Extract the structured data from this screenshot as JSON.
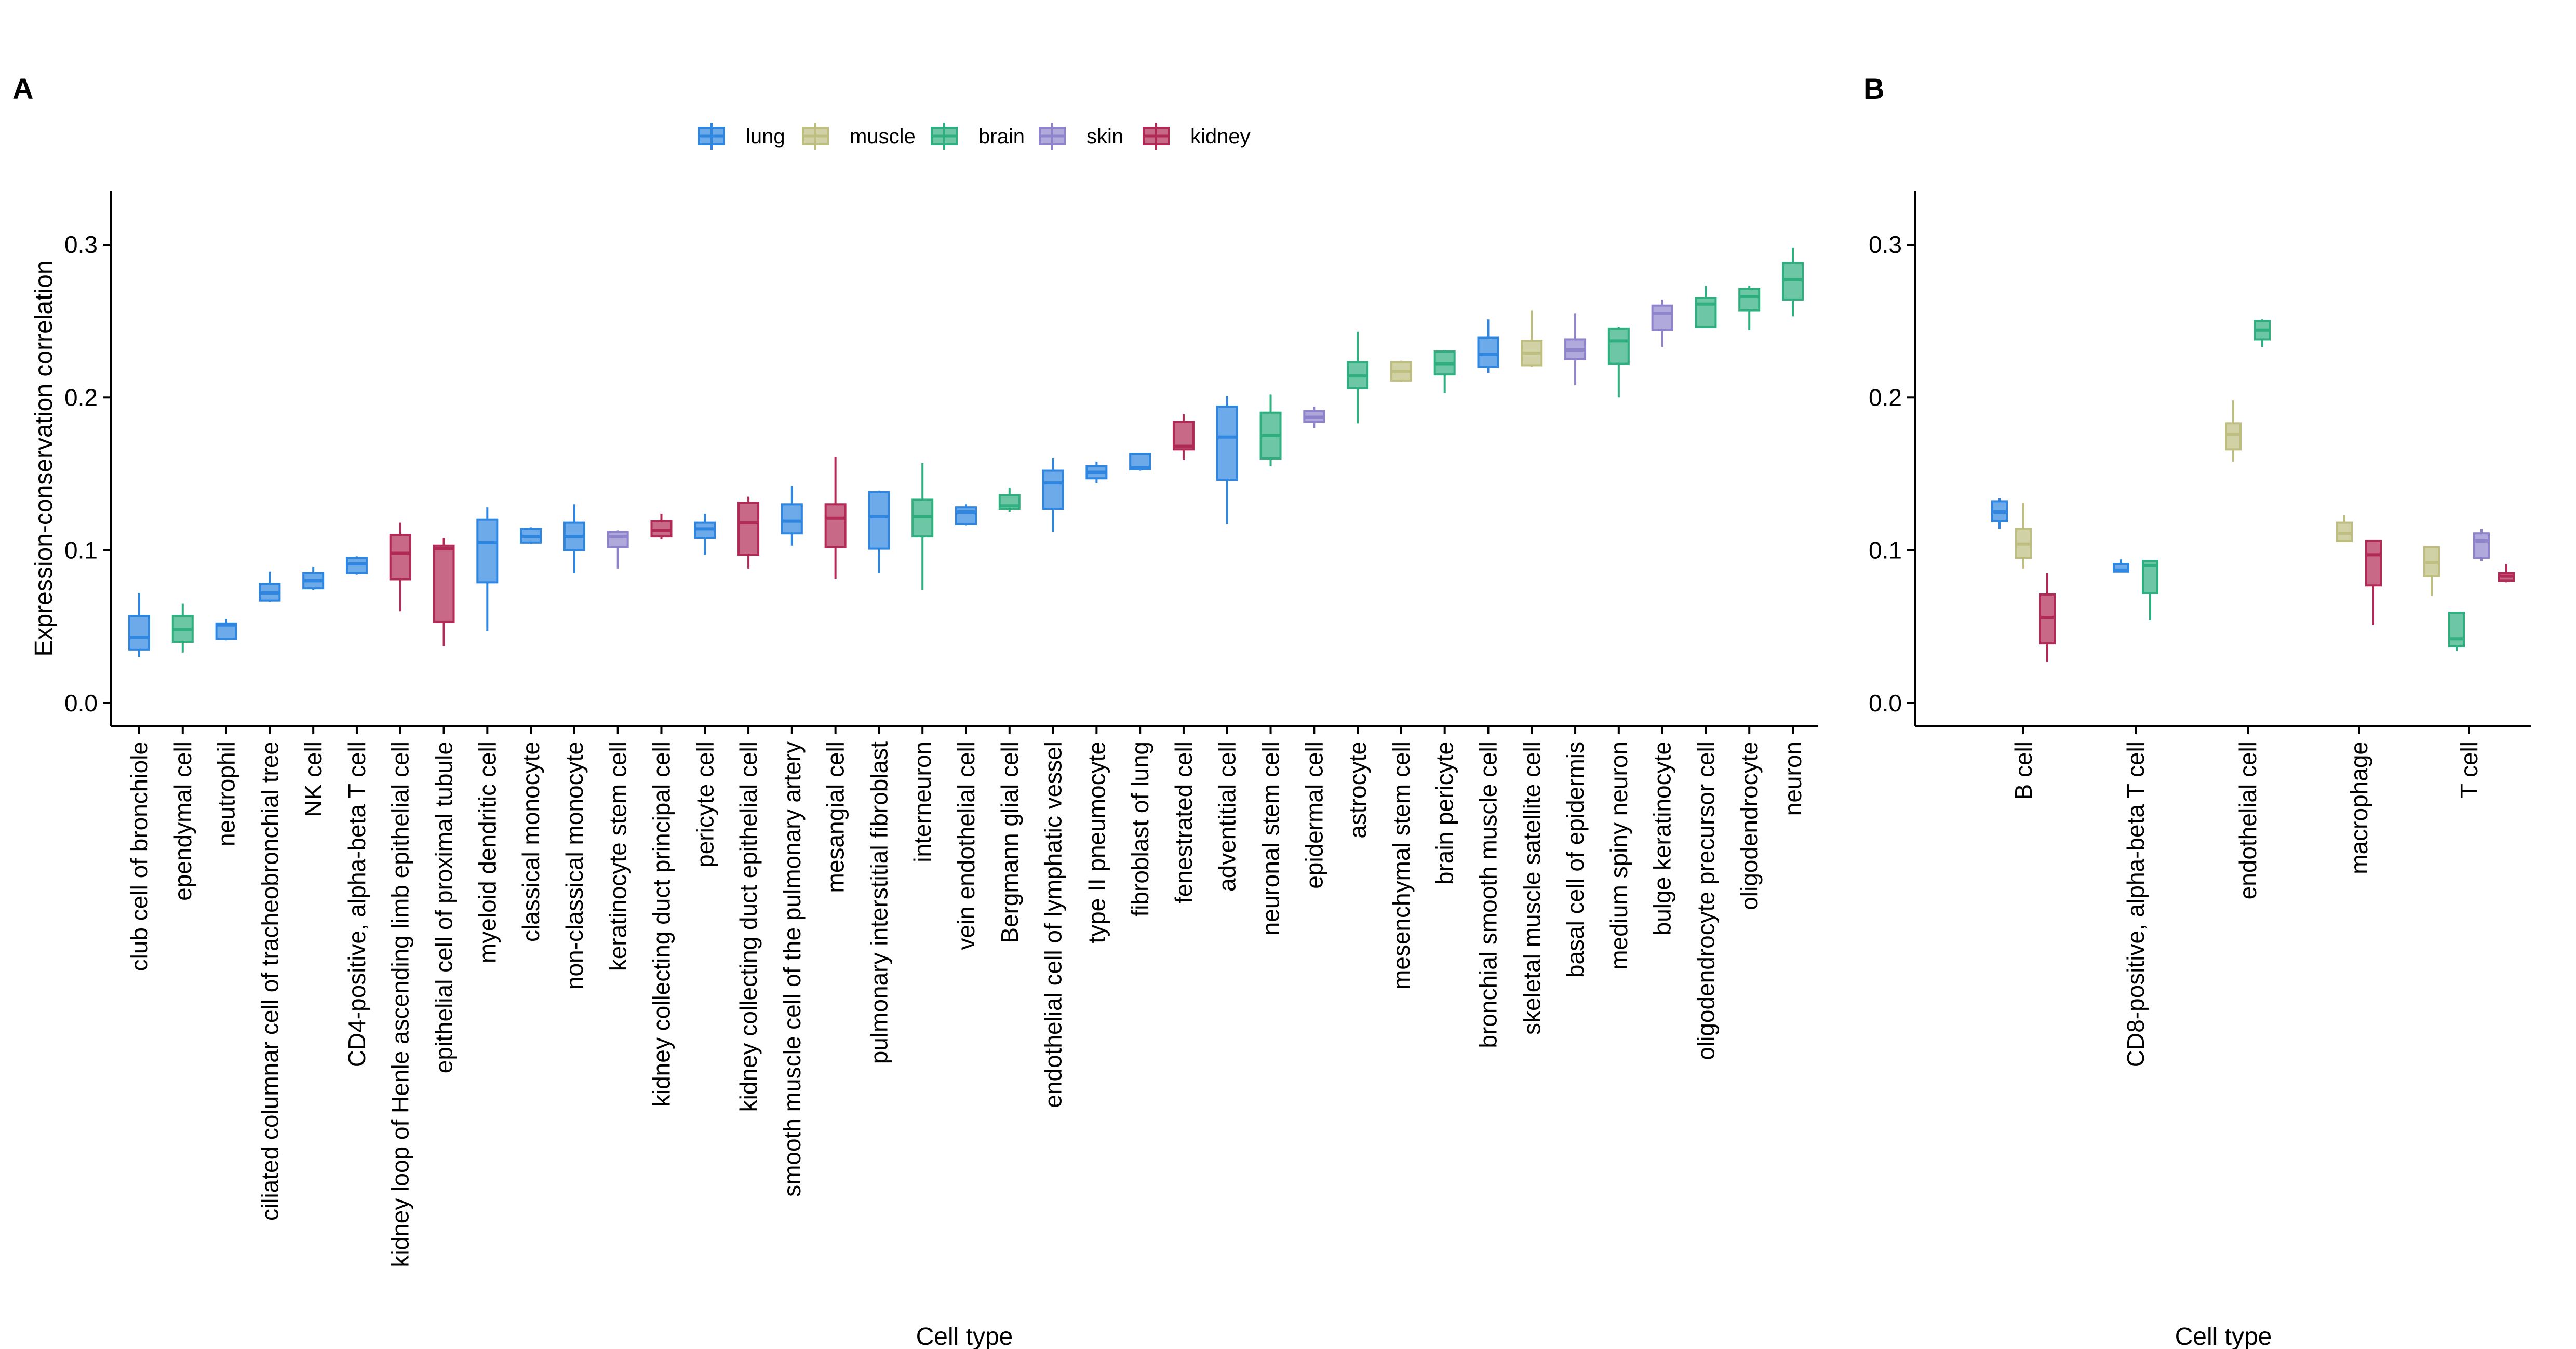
{
  "chart_data": [
    {
      "panel": "A",
      "type": "box",
      "xlabel": "Cell type",
      "ylabel": "Expression-conservation correlation",
      "ylim": [
        -0.015,
        0.335
      ],
      "yticks": [
        0.0,
        0.1,
        0.2,
        0.3
      ],
      "ytick_labels": [
        "0.0",
        "0.1",
        "0.2",
        "0.3"
      ],
      "legend": {
        "position": "top",
        "items": [
          {
            "name": "lung",
            "color": "#2E86E0"
          },
          {
            "name": "muscle",
            "color": "#BDBE80"
          },
          {
            "name": "brain",
            "color": "#2FAE7F"
          },
          {
            "name": "skin",
            "color": "#8F84CC"
          },
          {
            "name": "kidney",
            "color": "#B02A55"
          }
        ]
      },
      "categories": [
        "club cell of bronchiole",
        "ependymal cell",
        "neutrophil",
        "ciliated columnar cell of tracheobronchial tree",
        "NK cell",
        "CD4-positive, alpha-beta T cell",
        "kidney loop of Henle ascending limb epithelial cell",
        "epithelial cell of proximal tubule",
        "myeloid dendritic cell",
        "classical monocyte",
        "non-classical monocyte",
        "keratinocyte stem cell",
        "kidney collecting duct principal cell",
        "pericyte cell",
        "kidney collecting duct epithelial cell",
        "smooth muscle cell of the pulmonary artery",
        "mesangial cell",
        "pulmonary interstitial fibroblast",
        "interneuron",
        "vein endothelial cell",
        "Bergmann glial cell",
        "endothelial cell of lymphatic vessel",
        "type II pneumocyte",
        "fibroblast of lung",
        "fenestrated cell",
        "adventitial cell",
        "neuronal stem cell",
        "epidermal cell",
        "astrocyte",
        "mesenchymal stem cell",
        "brain pericyte",
        "bronchial smooth muscle cell",
        "skeletal muscle satellite cell",
        "basal cell of epidermis",
        "medium spiny neuron",
        "bulge keratinocyte",
        "oligodendrocyte precursor cell",
        "oligodendrocyte",
        "neuron"
      ],
      "boxes": [
        {
          "tissue": "lung",
          "lo": 0.03,
          "q1": 0.035,
          "med": 0.043,
          "q3": 0.057,
          "hi": 0.072
        },
        {
          "tissue": "brain",
          "lo": 0.033,
          "q1": 0.04,
          "med": 0.048,
          "q3": 0.057,
          "hi": 0.065
        },
        {
          "tissue": "lung",
          "lo": 0.041,
          "q1": 0.042,
          "med": 0.051,
          "q3": 0.052,
          "hi": 0.055
        },
        {
          "tissue": "lung",
          "lo": 0.066,
          "q1": 0.067,
          "med": 0.072,
          "q3": 0.078,
          "hi": 0.086
        },
        {
          "tissue": "lung",
          "lo": 0.074,
          "q1": 0.075,
          "med": 0.08,
          "q3": 0.085,
          "hi": 0.089
        },
        {
          "tissue": "lung",
          "lo": 0.084,
          "q1": 0.085,
          "med": 0.091,
          "q3": 0.095,
          "hi": 0.096
        },
        {
          "tissue": "kidney",
          "lo": 0.06,
          "q1": 0.081,
          "med": 0.098,
          "q3": 0.11,
          "hi": 0.118
        },
        {
          "tissue": "kidney",
          "lo": 0.037,
          "q1": 0.053,
          "med": 0.101,
          "q3": 0.103,
          "hi": 0.108
        },
        {
          "tissue": "lung",
          "lo": 0.047,
          "q1": 0.079,
          "med": 0.105,
          "q3": 0.12,
          "hi": 0.128
        },
        {
          "tissue": "lung",
          "lo": 0.104,
          "q1": 0.105,
          "med": 0.109,
          "q3": 0.114,
          "hi": 0.115
        },
        {
          "tissue": "lung",
          "lo": 0.085,
          "q1": 0.1,
          "med": 0.109,
          "q3": 0.118,
          "hi": 0.13
        },
        {
          "tissue": "skin",
          "lo": 0.088,
          "q1": 0.102,
          "med": 0.109,
          "q3": 0.112,
          "hi": 0.113
        },
        {
          "tissue": "kidney",
          "lo": 0.107,
          "q1": 0.109,
          "med": 0.113,
          "q3": 0.119,
          "hi": 0.124
        },
        {
          "tissue": "lung",
          "lo": 0.097,
          "q1": 0.108,
          "med": 0.114,
          "q3": 0.118,
          "hi": 0.124
        },
        {
          "tissue": "kidney",
          "lo": 0.088,
          "q1": 0.097,
          "med": 0.118,
          "q3": 0.131,
          "hi": 0.135
        },
        {
          "tissue": "lung",
          "lo": 0.103,
          "q1": 0.111,
          "med": 0.119,
          "q3": 0.13,
          "hi": 0.142
        },
        {
          "tissue": "kidney",
          "lo": 0.081,
          "q1": 0.102,
          "med": 0.121,
          "q3": 0.13,
          "hi": 0.161
        },
        {
          "tissue": "lung",
          "lo": 0.085,
          "q1": 0.101,
          "med": 0.122,
          "q3": 0.138,
          "hi": 0.139
        },
        {
          "tissue": "brain",
          "lo": 0.074,
          "q1": 0.109,
          "med": 0.122,
          "q3": 0.133,
          "hi": 0.157
        },
        {
          "tissue": "lung",
          "lo": 0.116,
          "q1": 0.117,
          "med": 0.125,
          "q3": 0.128,
          "hi": 0.13
        },
        {
          "tissue": "brain",
          "lo": 0.125,
          "q1": 0.127,
          "med": 0.129,
          "q3": 0.136,
          "hi": 0.141
        },
        {
          "tissue": "lung",
          "lo": 0.112,
          "q1": 0.127,
          "med": 0.144,
          "q3": 0.152,
          "hi": 0.16
        },
        {
          "tissue": "lung",
          "lo": 0.144,
          "q1": 0.147,
          "med": 0.151,
          "q3": 0.155,
          "hi": 0.158
        },
        {
          "tissue": "lung",
          "lo": 0.152,
          "q1": 0.153,
          "med": 0.154,
          "q3": 0.163,
          "hi": 0.163
        },
        {
          "tissue": "kidney",
          "lo": 0.159,
          "q1": 0.166,
          "med": 0.168,
          "q3": 0.184,
          "hi": 0.189
        },
        {
          "tissue": "lung",
          "lo": 0.117,
          "q1": 0.146,
          "med": 0.174,
          "q3": 0.194,
          "hi": 0.201
        },
        {
          "tissue": "brain",
          "lo": 0.155,
          "q1": 0.16,
          "med": 0.175,
          "q3": 0.19,
          "hi": 0.202
        },
        {
          "tissue": "skin",
          "lo": 0.18,
          "q1": 0.184,
          "med": 0.187,
          "q3": 0.191,
          "hi": 0.194
        },
        {
          "tissue": "brain",
          "lo": 0.183,
          "q1": 0.206,
          "med": 0.214,
          "q3": 0.223,
          "hi": 0.243
        },
        {
          "tissue": "muscle",
          "lo": 0.21,
          "q1": 0.211,
          "med": 0.217,
          "q3": 0.223,
          "hi": 0.224
        },
        {
          "tissue": "brain",
          "lo": 0.203,
          "q1": 0.215,
          "med": 0.222,
          "q3": 0.23,
          "hi": 0.231
        },
        {
          "tissue": "lung",
          "lo": 0.216,
          "q1": 0.22,
          "med": 0.228,
          "q3": 0.239,
          "hi": 0.251
        },
        {
          "tissue": "muscle",
          "lo": 0.22,
          "q1": 0.221,
          "med": 0.229,
          "q3": 0.237,
          "hi": 0.257
        },
        {
          "tissue": "skin",
          "lo": 0.208,
          "q1": 0.225,
          "med": 0.231,
          "q3": 0.238,
          "hi": 0.255
        },
        {
          "tissue": "brain",
          "lo": 0.2,
          "q1": 0.222,
          "med": 0.237,
          "q3": 0.245,
          "hi": 0.246
        },
        {
          "tissue": "skin",
          "lo": 0.233,
          "q1": 0.244,
          "med": 0.255,
          "q3": 0.26,
          "hi": 0.264
        },
        {
          "tissue": "brain",
          "lo": 0.246,
          "q1": 0.246,
          "med": 0.261,
          "q3": 0.265,
          "hi": 0.273
        },
        {
          "tissue": "brain",
          "lo": 0.244,
          "q1": 0.257,
          "med": 0.266,
          "q3": 0.271,
          "hi": 0.273
        },
        {
          "tissue": "brain",
          "lo": 0.253,
          "q1": 0.264,
          "med": 0.277,
          "q3": 0.288,
          "hi": 0.298
        }
      ]
    },
    {
      "panel": "B",
      "type": "box",
      "xlabel": "Cell type",
      "ylabel": "",
      "ylim": [
        -0.015,
        0.335
      ],
      "yticks": [
        0.0,
        0.1,
        0.2,
        0.3
      ],
      "ytick_labels": [
        "0.0",
        "0.1",
        "0.2",
        "0.3"
      ],
      "categories": [
        "B cell",
        "CD8-positive, alpha-beta T cell",
        "endothelial cell",
        "macrophage",
        "T cell"
      ],
      "boxes": [
        {
          "category": "B cell",
          "tissue": "lung",
          "lo": 0.114,
          "q1": 0.119,
          "med": 0.125,
          "q3": 0.132,
          "hi": 0.134
        },
        {
          "category": "B cell",
          "tissue": "muscle",
          "lo": 0.088,
          "q1": 0.095,
          "med": 0.104,
          "q3": 0.114,
          "hi": 0.131
        },
        {
          "category": "B cell",
          "tissue": "kidney",
          "lo": 0.027,
          "q1": 0.039,
          "med": 0.056,
          "q3": 0.071,
          "hi": 0.085
        },
        {
          "category": "CD8-positive, alpha-beta T cell",
          "tissue": "lung",
          "lo": 0.086,
          "q1": 0.086,
          "med": 0.087,
          "q3": 0.091,
          "hi": 0.094
        },
        {
          "category": "CD8-positive, alpha-beta T cell",
          "tissue": "brain",
          "lo": 0.054,
          "q1": 0.072,
          "med": 0.09,
          "q3": 0.093,
          "hi": 0.093
        },
        {
          "category": "endothelial cell",
          "tissue": "muscle",
          "lo": 0.158,
          "q1": 0.166,
          "med": 0.176,
          "q3": 0.183,
          "hi": 0.198
        },
        {
          "category": "endothelial cell",
          "tissue": "brain",
          "lo": 0.233,
          "q1": 0.238,
          "med": 0.244,
          "q3": 0.25,
          "hi": 0.251
        },
        {
          "category": "macrophage",
          "tissue": "muscle",
          "lo": 0.106,
          "q1": 0.106,
          "med": 0.111,
          "q3": 0.118,
          "hi": 0.123
        },
        {
          "category": "macrophage",
          "tissue": "kidney",
          "lo": 0.051,
          "q1": 0.077,
          "med": 0.097,
          "q3": 0.106,
          "hi": 0.106
        },
        {
          "category": "T cell",
          "tissue": "muscle",
          "lo": 0.07,
          "q1": 0.083,
          "med": 0.092,
          "q3": 0.102,
          "hi": 0.102
        },
        {
          "category": "T cell",
          "tissue": "brain",
          "lo": 0.034,
          "q1": 0.037,
          "med": 0.042,
          "q3": 0.059,
          "hi": 0.059
        },
        {
          "category": "T cell",
          "tissue": "skin",
          "lo": 0.093,
          "q1": 0.095,
          "med": 0.106,
          "q3": 0.111,
          "hi": 0.114
        },
        {
          "category": "T cell",
          "tissue": "kidney",
          "lo": 0.079,
          "q1": 0.08,
          "med": 0.083,
          "q3": 0.085,
          "hi": 0.091
        }
      ]
    }
  ]
}
